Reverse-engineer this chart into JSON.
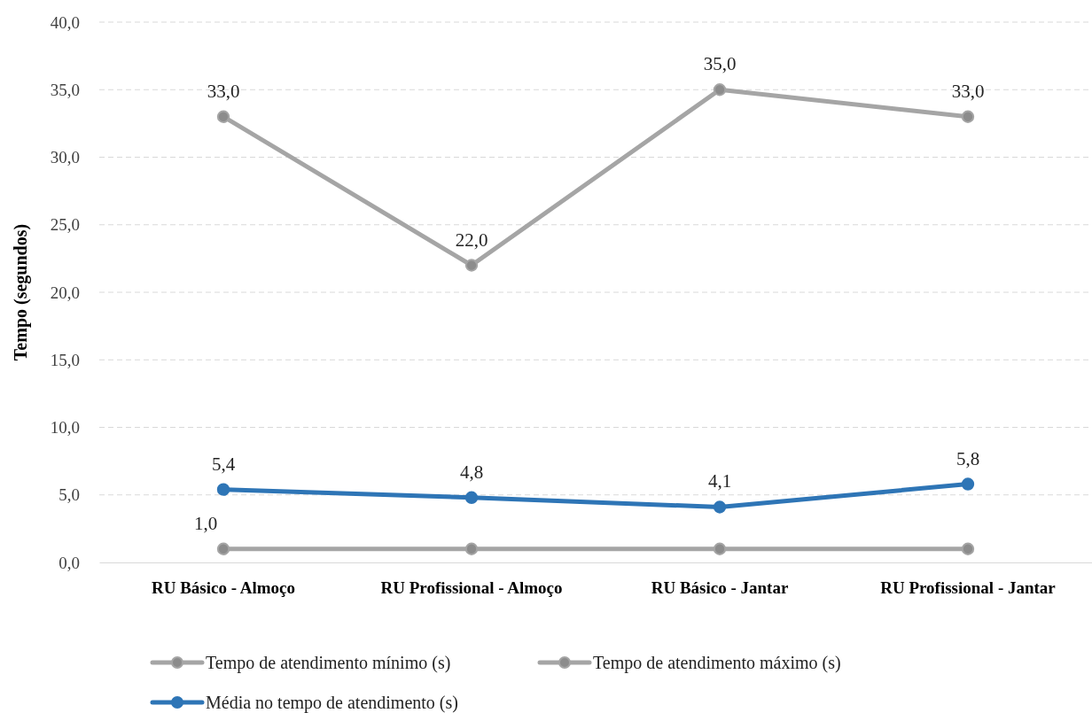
{
  "chart_data": {
    "type": "line",
    "ylabel": "Tempo (segundos)",
    "categories": [
      "RU Básico - Almoço",
      "RU Profissional - Almoço",
      "RU Básico - Jantar",
      "RU Profissional - Jantar"
    ],
    "series": [
      {
        "name": "Tempo de atendimento mínimo (s)",
        "color": "#a5a5a5",
        "values": [
          1.0,
          1.0,
          1.0,
          1.0
        ],
        "value_labels": [
          "1,0",
          null,
          null,
          null
        ]
      },
      {
        "name": "Tempo de atendimento máximo (s)",
        "color": "#a5a5a5",
        "values": [
          33.0,
          22.0,
          35.0,
          33.0
        ],
        "value_labels": [
          "33,0",
          "22,0",
          "35,0",
          "33,0"
        ]
      },
      {
        "name": "Média no tempo de atendimento (s)",
        "color": "#2e75b6",
        "values": [
          5.4,
          4.8,
          4.1,
          5.8
        ],
        "value_labels": [
          "5,4",
          "4,8",
          "4,1",
          "5,8"
        ]
      }
    ],
    "ylim": [
      0,
      40
    ],
    "yticks": [
      {
        "value": 0,
        "label": "0,0"
      },
      {
        "value": 5,
        "label": "5,0"
      },
      {
        "value": 10,
        "label": "10,0"
      },
      {
        "value": 15,
        "label": "15,0"
      },
      {
        "value": 20,
        "label": "20,0"
      },
      {
        "value": 25,
        "label": "25,0"
      },
      {
        "value": 30,
        "label": "30,0"
      },
      {
        "value": 35,
        "label": "35,0"
      },
      {
        "value": 40,
        "label": "40,0"
      }
    ],
    "grid": "y",
    "legend": "bottom",
    "marker": "circle",
    "line_style": "solid"
  }
}
